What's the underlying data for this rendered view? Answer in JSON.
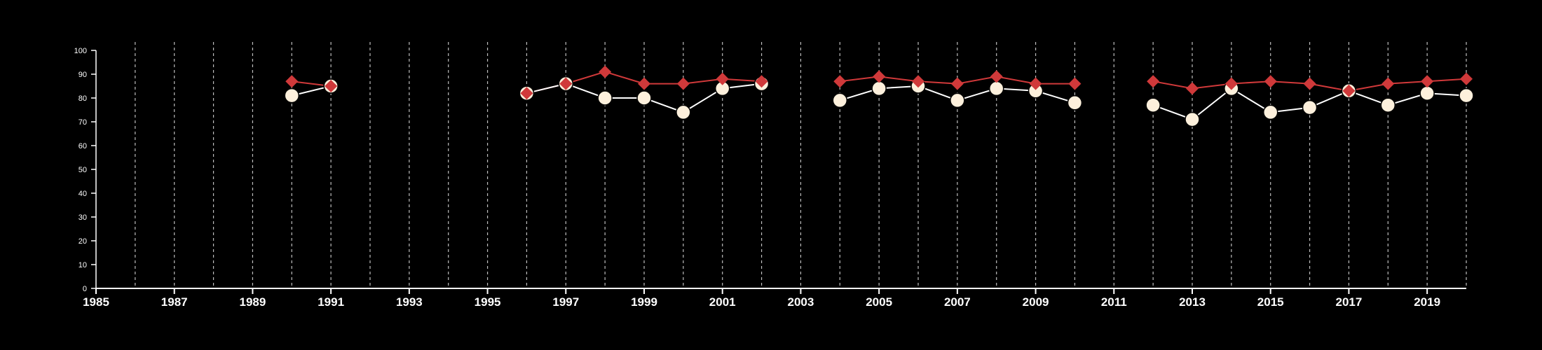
{
  "chart_data": {
    "type": "line",
    "title": "",
    "xlabel": "",
    "ylabel": "",
    "xlim": [
      1985,
      2020
    ],
    "ylim": [
      0,
      100
    ],
    "x_ticks": [
      1985,
      1987,
      1989,
      1991,
      1993,
      1995,
      1997,
      1999,
      2001,
      2003,
      2005,
      2007,
      2009,
      2011,
      2013,
      2015,
      2017,
      2019
    ],
    "y_ticks": [
      0,
      10,
      20,
      30,
      40,
      50,
      60,
      70,
      80,
      90,
      100
    ],
    "vertical_gridlines_at": [
      1986,
      1987,
      1988,
      1989,
      1990,
      1991,
      1992,
      1993,
      1994,
      1995,
      1996,
      1997,
      1998,
      1999,
      2000,
      2001,
      2002,
      2003,
      2004,
      2005,
      2006,
      2007,
      2008,
      2009,
      2010,
      2011,
      2012,
      2013,
      2014,
      2015,
      2016,
      2017,
      2018,
      2019,
      2020
    ],
    "grid": "vertical dashed",
    "legend": "none",
    "series": [
      {
        "color": "#d0393a",
        "marker": "diamond",
        "points": [
          [
            1990,
            87
          ],
          [
            1991,
            85
          ],
          [
            1996,
            82
          ],
          [
            1997,
            86
          ],
          [
            1998,
            91
          ],
          [
            1999,
            86
          ],
          [
            2000,
            86
          ],
          [
            2001,
            88
          ],
          [
            2002,
            87
          ],
          [
            2004,
            87
          ],
          [
            2005,
            89
          ],
          [
            2006,
            87
          ],
          [
            2007,
            86
          ],
          [
            2008,
            89
          ],
          [
            2009,
            86
          ],
          [
            2010,
            86
          ],
          [
            2012,
            87
          ],
          [
            2013,
            84
          ],
          [
            2014,
            86
          ],
          [
            2015,
            87
          ],
          [
            2016,
            86
          ],
          [
            2017,
            83
          ],
          [
            2018,
            86
          ],
          [
            2019,
            87
          ],
          [
            2020,
            88
          ]
        ],
        "segments": [
          [
            1990,
            1991
          ],
          [
            1996,
            2002
          ],
          [
            2004,
            2010
          ],
          [
            2012,
            2020
          ]
        ]
      },
      {
        "color": "#fdf0dc",
        "marker": "circle",
        "points": [
          [
            1990,
            81
          ],
          [
            1991,
            85
          ],
          [
            1996,
            82
          ],
          [
            1997,
            86
          ],
          [
            1998,
            80
          ],
          [
            1999,
            80
          ],
          [
            2000,
            74
          ],
          [
            2001,
            84
          ],
          [
            2002,
            86
          ],
          [
            2004,
            79
          ],
          [
            2005,
            84
          ],
          [
            2006,
            85
          ],
          [
            2007,
            79
          ],
          [
            2008,
            84
          ],
          [
            2009,
            83
          ],
          [
            2010,
            78
          ],
          [
            2012,
            77
          ],
          [
            2013,
            71
          ],
          [
            2014,
            84
          ],
          [
            2015,
            74
          ],
          [
            2016,
            76
          ],
          [
            2017,
            83
          ],
          [
            2018,
            77
          ],
          [
            2019,
            82
          ],
          [
            2020,
            81
          ]
        ],
        "segments": [
          [
            1990,
            1991
          ],
          [
            1996,
            2002
          ],
          [
            2004,
            2010
          ],
          [
            2012,
            2020
          ]
        ]
      }
    ]
  }
}
